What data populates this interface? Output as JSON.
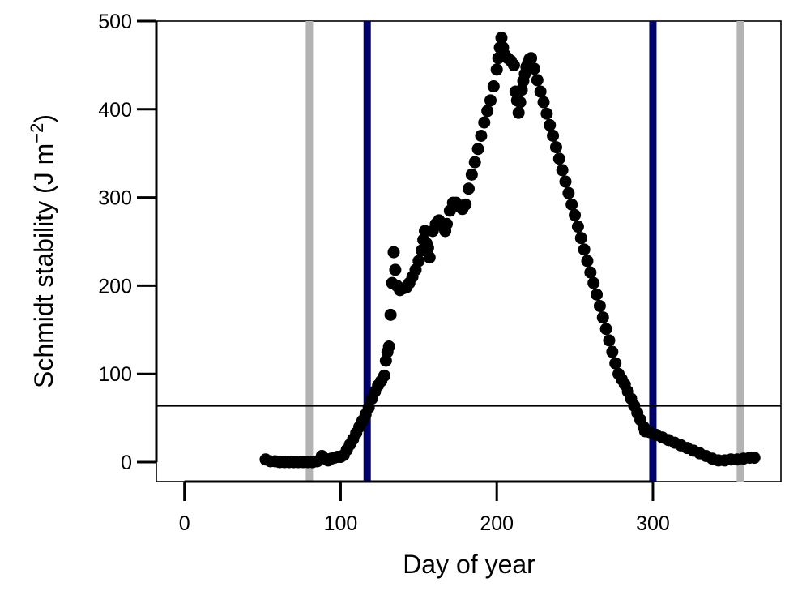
{
  "chart_data": {
    "type": "scatter",
    "xlabel": "Day of year",
    "ylabel_main": "Schmidt stability (J m",
    "ylabel_sup": "−2",
    "ylabel_close": ")",
    "xlim": [
      -18,
      382
    ],
    "ylim": [
      -22,
      500
    ],
    "xticks": [
      0,
      100,
      200,
      300
    ],
    "yticks": [
      0,
      100,
      200,
      300,
      400,
      500
    ],
    "xtick_labels": [
      "0",
      "100",
      "200",
      "300"
    ],
    "ytick_labels": [
      "0",
      "100",
      "200",
      "300",
      "400",
      "500"
    ],
    "grid": false,
    "point_color": "#000000",
    "reference_lines": {
      "horizontal": [
        {
          "y": 64,
          "color": "#000000"
        }
      ],
      "vertical": [
        {
          "x": 80,
          "color": "#b3b3b3"
        },
        {
          "x": 117,
          "color": "#00006b"
        },
        {
          "x": 300,
          "color": "#00006b"
        },
        {
          "x": 356,
          "color": "#b3b3b3"
        }
      ]
    },
    "series": [
      {
        "points": [
          [
            52,
            3
          ],
          [
            55,
            1
          ],
          [
            58,
            1
          ],
          [
            61,
            0
          ],
          [
            64,
            0
          ],
          [
            67,
            0
          ],
          [
            70,
            0
          ],
          [
            73,
            0
          ],
          [
            76,
            0
          ],
          [
            79,
            0
          ],
          [
            82,
            0
          ],
          [
            85,
            1
          ],
          [
            88,
            7
          ],
          [
            90,
            4
          ],
          [
            92,
            2
          ],
          [
            94,
            4
          ],
          [
            96,
            5
          ],
          [
            98,
            6
          ],
          [
            100,
            6
          ],
          [
            102,
            8
          ],
          [
            104,
            14
          ],
          [
            106,
            20
          ],
          [
            108,
            26
          ],
          [
            110,
            33
          ],
          [
            112,
            40
          ],
          [
            114,
            47
          ],
          [
            116,
            54
          ],
          [
            118,
            62
          ],
          [
            120,
            72
          ],
          [
            122,
            80
          ],
          [
            124,
            87
          ],
          [
            126,
            92
          ],
          [
            128,
            98
          ],
          [
            129,
            115
          ],
          [
            130,
            125
          ],
          [
            131,
            131
          ],
          [
            132,
            167
          ],
          [
            133,
            203
          ],
          [
            134,
            238
          ],
          [
            135,
            218
          ],
          [
            136,
            200
          ],
          [
            138,
            195
          ],
          [
            140,
            197
          ],
          [
            142,
            198
          ],
          [
            144,
            203
          ],
          [
            146,
            210
          ],
          [
            148,
            218
          ],
          [
            150,
            228
          ],
          [
            152,
            240
          ],
          [
            153,
            252
          ],
          [
            154,
            262
          ],
          [
            155,
            248
          ],
          [
            156,
            243
          ],
          [
            157,
            232
          ],
          [
            159,
            262
          ],
          [
            161,
            270
          ],
          [
            163,
            274
          ],
          [
            165,
            268
          ],
          [
            167,
            262
          ],
          [
            168,
            270
          ],
          [
            170,
            285
          ],
          [
            172,
            294
          ],
          [
            174,
            294
          ],
          [
            176,
            290
          ],
          [
            178,
            287
          ],
          [
            180,
            292
          ],
          [
            182,
            310
          ],
          [
            184,
            326
          ],
          [
            186,
            340
          ],
          [
            188,
            355
          ],
          [
            190,
            370
          ],
          [
            192,
            385
          ],
          [
            194,
            398
          ],
          [
            196,
            410
          ],
          [
            198,
            426
          ],
          [
            200,
            445
          ],
          [
            201,
            458
          ],
          [
            202,
            470
          ],
          [
            203,
            481
          ],
          [
            204,
            470
          ],
          [
            205,
            462
          ],
          [
            207,
            458
          ],
          [
            209,
            455
          ],
          [
            211,
            450
          ],
          [
            212,
            420
          ],
          [
            213,
            410
          ],
          [
            214,
            396
          ],
          [
            215,
            408
          ],
          [
            216,
            422
          ],
          [
            217,
            432
          ],
          [
            218,
            440
          ],
          [
            219,
            448
          ],
          [
            220,
            452
          ],
          [
            221,
            457
          ],
          [
            222,
            458
          ],
          [
            224,
            446
          ],
          [
            226,
            433
          ],
          [
            228,
            420
          ],
          [
            230,
            408
          ],
          [
            232,
            395
          ],
          [
            234,
            382
          ],
          [
            236,
            370
          ],
          [
            238,
            357
          ],
          [
            240,
            344
          ],
          [
            242,
            331
          ],
          [
            244,
            318
          ],
          [
            246,
            305
          ],
          [
            248,
            292
          ],
          [
            250,
            280
          ],
          [
            252,
            267
          ],
          [
            254,
            254
          ],
          [
            256,
            241
          ],
          [
            258,
            228
          ],
          [
            260,
            215
          ],
          [
            262,
            203
          ],
          [
            264,
            190
          ],
          [
            266,
            177
          ],
          [
            268,
            164
          ],
          [
            270,
            151
          ],
          [
            272,
            138
          ],
          [
            274,
            125
          ],
          [
            276,
            112
          ],
          [
            278,
            100
          ],
          [
            280,
            94
          ],
          [
            282,
            88
          ],
          [
            284,
            80
          ],
          [
            286,
            72
          ],
          [
            288,
            64
          ],
          [
            290,
            56
          ],
          [
            292,
            48
          ],
          [
            294,
            40
          ],
          [
            295,
            35
          ],
          [
            298,
            34
          ],
          [
            302,
            31
          ],
          [
            306,
            28
          ],
          [
            310,
            25
          ],
          [
            314,
            22
          ],
          [
            318,
            19
          ],
          [
            322,
            16
          ],
          [
            326,
            13
          ],
          [
            330,
            10
          ],
          [
            334,
            7
          ],
          [
            338,
            4
          ],
          [
            342,
            2
          ],
          [
            346,
            2
          ],
          [
            350,
            3
          ],
          [
            354,
            3
          ],
          [
            358,
            4
          ],
          [
            362,
            5
          ],
          [
            365,
            5
          ]
        ]
      }
    ]
  }
}
